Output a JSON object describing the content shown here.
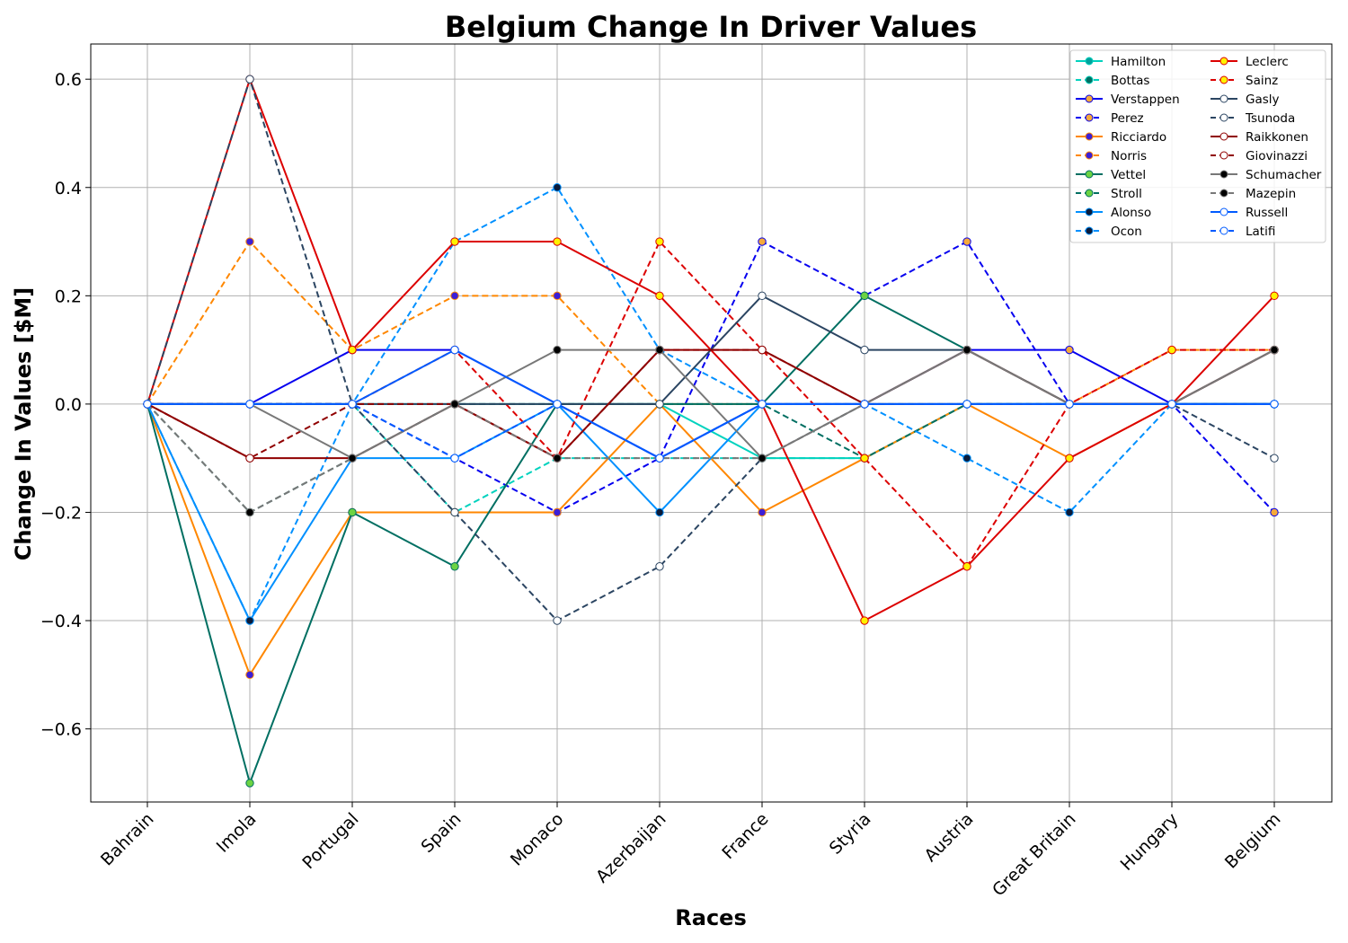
{
  "chart_data": {
    "type": "line",
    "title": "Belgium Change In Driver Values",
    "xlabel": "Races",
    "ylabel": "Change In Values [$M]",
    "categories": [
      "Bahrain",
      "Imola",
      "Portugal",
      "Spain",
      "Monaco",
      "Azerbaijan",
      "France",
      "Styria",
      "Austria",
      "Great Britain",
      "Hungary",
      "Belgium"
    ],
    "ylim": [
      -0.735,
      0.665
    ],
    "yticks": [
      -0.6,
      -0.4,
      -0.2,
      0.0,
      0.2,
      0.4,
      0.6
    ],
    "ytick_labels": [
      "−0.6",
      "−0.4",
      "−0.2",
      "0.0",
      "0.2",
      "0.4",
      "0.6"
    ],
    "grid": true,
    "legend_position": "top-right",
    "legend_columns": 2,
    "series": [
      {
        "name": "Hamilton",
        "color": "#00d2be",
        "dash": "solid",
        "marker_fill": "#00a19c",
        "values": [
          0,
          0,
          0,
          0,
          0,
          0,
          -0.1,
          -0.1,
          0,
          0,
          0,
          0
        ]
      },
      {
        "name": "Bottas",
        "color": "#00d2be",
        "dash": "dashed",
        "marker_fill": "#006f62",
        "values": [
          0,
          0,
          0,
          -0.2,
          -0.1,
          -0.1,
          -0.1,
          -0.1,
          0,
          0,
          0,
          0
        ]
      },
      {
        "name": "Verstappen",
        "color": "#0600ef",
        "dash": "solid",
        "marker_fill": "#f4a93b",
        "values": [
          0,
          0,
          0.1,
          0.1,
          0,
          -0.1,
          0,
          0,
          0.1,
          0.1,
          0,
          0
        ]
      },
      {
        "name": "Perez",
        "color": "#0600ef",
        "dash": "dashed",
        "marker_fill": "#f4a93b",
        "values": [
          0,
          0,
          0,
          -0.1,
          -0.2,
          -0.1,
          0.3,
          0.2,
          0.3,
          0,
          0,
          -0.2
        ]
      },
      {
        "name": "Ricciardo",
        "color": "#ff8700",
        "dash": "solid",
        "marker_fill": "#3c1fd6",
        "values": [
          0,
          -0.5,
          -0.2,
          -0.2,
          -0.2,
          0,
          -0.2,
          -0.1,
          0,
          -0.1,
          0,
          0
        ]
      },
      {
        "name": "Norris",
        "color": "#ff8700",
        "dash": "dashed",
        "marker_fill": "#3c1fd6",
        "values": [
          0,
          0.3,
          0.1,
          0.2,
          0.2,
          0,
          0,
          0,
          0,
          0,
          0.1,
          0.1
        ]
      },
      {
        "name": "Vettel",
        "color": "#006f62",
        "dash": "solid",
        "marker_fill": "#6cd343",
        "values": [
          0,
          -0.7,
          -0.2,
          -0.3,
          0,
          0,
          0,
          0.2,
          0.1,
          0,
          0,
          0
        ]
      },
      {
        "name": "Stroll",
        "color": "#006f62",
        "dash": "dashed",
        "marker_fill": "#6cd343",
        "values": [
          0,
          -0.2,
          -0.1,
          0,
          0,
          0,
          0,
          -0.1,
          0,
          0,
          0,
          0
        ]
      },
      {
        "name": "Alonso",
        "color": "#0090ff",
        "dash": "solid",
        "marker_fill": "#0b1b3a",
        "values": [
          0,
          -0.4,
          -0.1,
          -0.1,
          0,
          -0.2,
          0,
          0,
          0,
          0,
          0,
          0
        ]
      },
      {
        "name": "Ocon",
        "color": "#0090ff",
        "dash": "dashed",
        "marker_fill": "#0b1b3a",
        "values": [
          0,
          -0.4,
          0,
          0.3,
          0.4,
          0.1,
          0,
          0,
          -0.1,
          -0.2,
          0,
          0
        ]
      },
      {
        "name": "Leclerc",
        "color": "#dc0000",
        "dash": "solid",
        "marker_fill": "#fff200",
        "values": [
          0,
          0.6,
          0.1,
          0.3,
          0.3,
          0.2,
          0,
          -0.4,
          -0.3,
          -0.1,
          0,
          0.2
        ]
      },
      {
        "name": "Sainz",
        "color": "#dc0000",
        "dash": "dashed",
        "marker_fill": "#fff200",
        "values": [
          0,
          0,
          0,
          0.1,
          -0.1,
          0.3,
          0.1,
          -0.1,
          -0.3,
          0,
          0.1,
          0.1
        ]
      },
      {
        "name": "Gasly",
        "color": "#2b4562",
        "dash": "solid",
        "marker_fill": "#ffffff",
        "values": [
          0,
          0,
          0,
          0,
          0,
          0,
          0.2,
          0.1,
          0.1,
          0,
          0,
          0.1
        ]
      },
      {
        "name": "Tsunoda",
        "color": "#2b4562",
        "dash": "dashed",
        "marker_fill": "#ffffff",
        "values": [
          0,
          0.6,
          0,
          -0.2,
          -0.4,
          -0.3,
          -0.1,
          0,
          0,
          0,
          0,
          -0.1
        ]
      },
      {
        "name": "Raikkonen",
        "color": "#900000",
        "dash": "solid",
        "marker_fill": "#ffffff",
        "values": [
          0,
          -0.1,
          -0.1,
          0,
          -0.1,
          0.1,
          0.1,
          0,
          0.1,
          0,
          0,
          0.1
        ]
      },
      {
        "name": "Giovinazzi",
        "color": "#900000",
        "dash": "dashed",
        "marker_fill": "#ffffff",
        "values": [
          0,
          -0.1,
          0,
          0,
          -0.1,
          0.1,
          0.1,
          0,
          0.1,
          0,
          0,
          0.1
        ]
      },
      {
        "name": "Schumacher",
        "color": "#787878",
        "dash": "solid",
        "marker_fill": "#000000",
        "values": [
          0,
          0,
          -0.1,
          0,
          0.1,
          0.1,
          -0.1,
          0,
          0.1,
          0,
          0,
          0.1
        ]
      },
      {
        "name": "Mazepin",
        "color": "#787878",
        "dash": "dashed",
        "marker_fill": "#000000",
        "values": [
          0,
          -0.2,
          -0.1,
          0,
          -0.1,
          -0.1,
          -0.1,
          0,
          0.1,
          0,
          0,
          0.1
        ]
      },
      {
        "name": "Russell",
        "color": "#005aff",
        "dash": "solid",
        "marker_fill": "#ffffff",
        "values": [
          0,
          0,
          0,
          0.1,
          0,
          -0.1,
          0,
          0,
          0,
          0,
          0,
          0
        ]
      },
      {
        "name": "Latifi",
        "color": "#005aff",
        "dash": "dashed",
        "marker_fill": "#ffffff",
        "values": [
          0,
          0,
          0,
          -0.1,
          0,
          -0.1,
          0,
          0,
          0,
          0,
          0,
          0
        ]
      }
    ]
  }
}
